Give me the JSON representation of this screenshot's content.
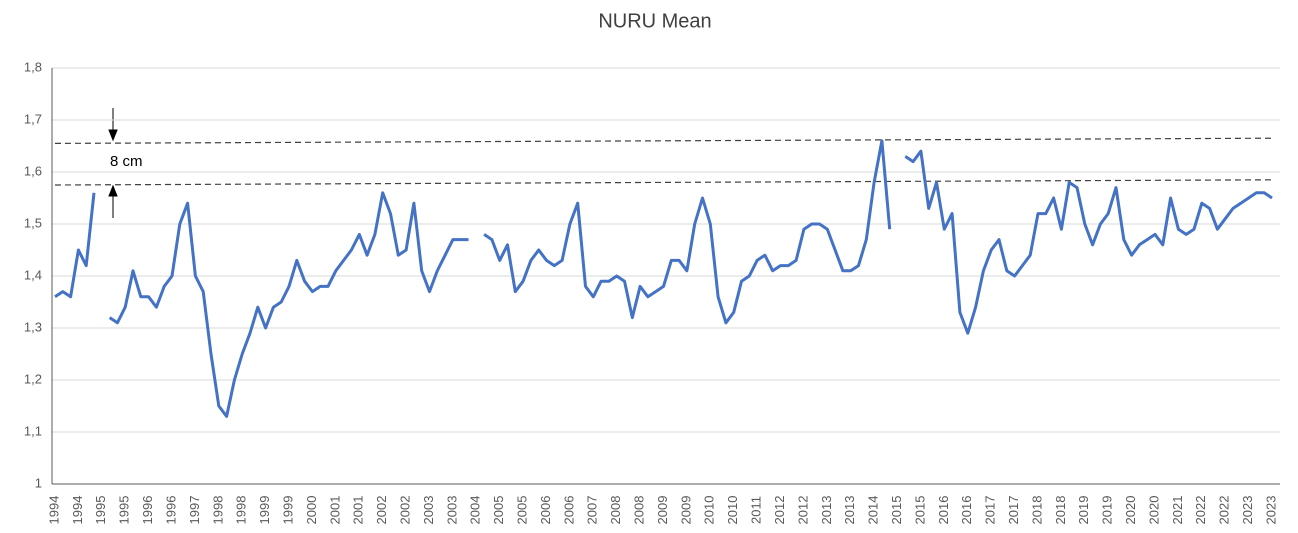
{
  "chart_data": {
    "type": "line",
    "title": "NURU Mean",
    "categories": [
      "1994",
      null,
      null,
      "1994",
      null,
      null,
      "1995",
      null,
      null,
      "1995",
      null,
      null,
      "1996",
      null,
      null,
      "1996",
      null,
      null,
      "1997",
      null,
      null,
      "1998",
      null,
      null,
      "1998",
      null,
      null,
      "1999",
      null,
      null,
      "1999",
      null,
      null,
      "2000",
      null,
      null,
      "2001",
      null,
      null,
      "2001",
      null,
      null,
      "2002",
      null,
      null,
      "2002",
      null,
      null,
      "2003",
      null,
      null,
      "2003",
      null,
      null,
      "2004",
      null,
      null,
      "2005",
      null,
      null,
      "2005",
      null,
      null,
      "2006",
      null,
      null,
      "2006",
      null,
      null,
      "2007",
      null,
      null,
      "2008",
      null,
      null,
      "2008",
      null,
      null,
      "2009",
      null,
      null,
      "2009",
      null,
      null,
      "2010",
      null,
      null,
      "2010",
      null,
      null,
      "2011",
      null,
      null,
      "2012",
      null,
      null,
      "2012",
      null,
      null,
      "2013",
      null,
      null,
      "2013",
      null,
      null,
      "2014",
      null,
      null,
      "2015",
      null,
      null,
      "2015",
      null,
      null,
      "2016",
      null,
      null,
      "2016",
      null,
      null,
      "2017",
      null,
      null,
      "2017",
      null,
      null,
      "2018",
      null,
      null,
      "2018",
      null,
      null,
      "2019",
      null,
      null,
      "2019",
      null,
      null,
      "2020",
      null,
      null,
      "2020",
      null,
      null,
      "2021",
      null,
      null,
      "2022",
      null,
      null,
      "2022",
      null,
      null,
      "2023",
      null,
      null,
      "2023"
    ],
    "series": [
      {
        "name": "NURU Mean",
        "color": "#4472c4",
        "values": [
          1.36,
          1.37,
          1.36,
          1.45,
          1.42,
          1.56,
          null,
          1.32,
          1.31,
          1.34,
          1.41,
          1.36,
          1.36,
          1.34,
          1.38,
          1.4,
          1.5,
          1.54,
          1.4,
          1.37,
          1.25,
          1.15,
          1.13,
          1.2,
          1.25,
          1.29,
          1.34,
          1.3,
          1.34,
          1.35,
          1.38,
          1.43,
          1.39,
          1.37,
          1.38,
          1.38,
          1.41,
          1.43,
          1.45,
          1.48,
          1.44,
          1.48,
          1.56,
          1.52,
          1.44,
          1.45,
          1.54,
          1.41,
          1.37,
          1.41,
          1.44,
          1.47,
          1.47,
          1.47,
          null,
          1.48,
          1.47,
          1.43,
          1.46,
          1.37,
          1.39,
          1.43,
          1.45,
          1.43,
          1.42,
          1.43,
          1.5,
          1.54,
          1.38,
          1.36,
          1.39,
          1.39,
          1.4,
          1.39,
          1.32,
          1.38,
          1.36,
          1.37,
          1.38,
          1.43,
          1.43,
          1.41,
          1.5,
          1.55,
          1.5,
          1.36,
          1.31,
          1.33,
          1.39,
          1.4,
          1.43,
          1.44,
          1.41,
          1.42,
          1.42,
          1.43,
          1.49,
          1.5,
          1.5,
          1.49,
          1.45,
          1.41,
          1.41,
          1.42,
          1.47,
          1.58,
          1.66,
          1.49,
          null,
          1.63,
          1.62,
          1.64,
          1.53,
          1.58,
          1.49,
          1.52,
          1.33,
          1.29,
          1.34,
          1.41,
          1.45,
          1.47,
          1.41,
          1.4,
          1.42,
          1.44,
          1.52,
          1.52,
          1.55,
          1.49,
          1.58,
          1.57,
          1.5,
          1.46,
          1.5,
          1.52,
          1.57,
          1.47,
          1.44,
          1.46,
          1.47,
          1.48,
          1.46,
          1.55,
          1.49,
          1.48,
          1.49,
          1.54,
          1.53,
          1.49,
          1.51,
          1.53,
          1.54,
          1.55,
          1.56,
          1.56,
          1.55
        ]
      }
    ],
    "ylim": [
      1,
      1.8
    ],
    "yticks": [
      1,
      {
        "value": 1.1,
        "label": "1,1"
      },
      {
        "value": 1.2,
        "label": "1,2"
      },
      {
        "value": 1.3,
        "label": "1,3"
      },
      {
        "value": 1.4,
        "label": "1,4"
      },
      {
        "value": 1.5,
        "label": "1,5"
      },
      {
        "value": 1.6,
        "label": "1,6"
      },
      {
        "value": 1.7,
        "label": "1,7"
      },
      {
        "value": 1.8,
        "label": "1,8"
      }
    ],
    "grid": true,
    "reference_lines": [
      {
        "y": [
          1.655,
          1.665
        ]
      },
      {
        "y": [
          1.575,
          1.585
        ]
      }
    ],
    "annotations": [
      {
        "text": "8 cm"
      }
    ]
  }
}
